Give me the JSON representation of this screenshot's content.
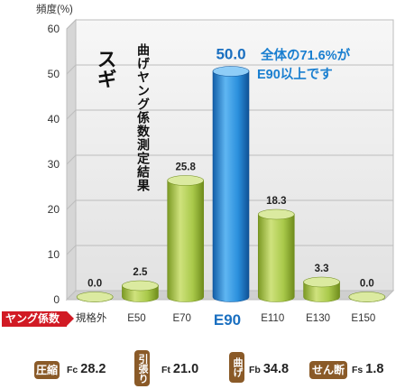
{
  "chart_data": {
    "type": "bar",
    "title": "スギ",
    "subtitle": "曲げヤング係数測定結果",
    "ylabel": "頻度(%)",
    "xlabel": "ヤング係数",
    "categories": [
      "規格外",
      "E50",
      "E70",
      "E90",
      "E110",
      "E130",
      "E150"
    ],
    "values": [
      0.0,
      2.5,
      25.8,
      50.0,
      18.3,
      3.3,
      0.0
    ],
    "value_labels": [
      "0.0",
      "2.5",
      "25.8",
      "50.0",
      "18.3",
      "3.3",
      "0.0"
    ],
    "highlight_index": 3,
    "ylim": [
      0,
      60
    ],
    "yticks": [
      "0",
      "10",
      "20",
      "30",
      "40",
      "50",
      "60"
    ],
    "grid": true,
    "annotation": [
      "全体の71.6%が",
      "E90以上です"
    ],
    "colors": {
      "bar": "#a9c94a",
      "highlight": "#2a8fdc",
      "accent": "#1a7fd0",
      "tag": "#d11a24"
    }
  },
  "footer": {
    "stats": [
      {
        "label": "圧縮",
        "code": "Fc",
        "value": "28.2"
      },
      {
        "label": "引張り",
        "code": "Ft",
        "value": "21.0"
      },
      {
        "label": "曲げ",
        "code": "Fb",
        "value": "34.8"
      },
      {
        "label": "せん断",
        "code": "Fs",
        "value": "1.8"
      }
    ]
  }
}
